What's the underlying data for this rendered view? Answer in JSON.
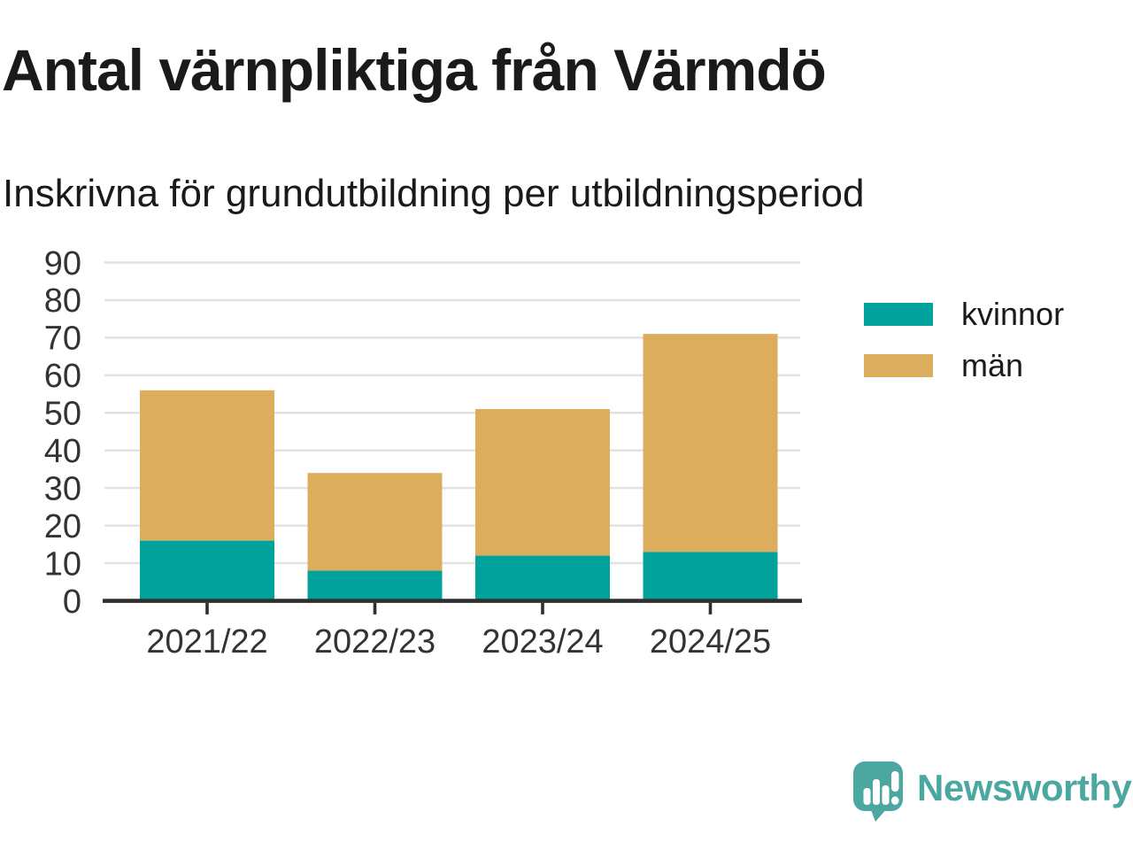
{
  "header": {
    "title": "Antal värnpliktiga från Värmdö",
    "subtitle": "Inskrivna för grundutbildning per utbildningsperiod"
  },
  "chart_data": {
    "type": "bar",
    "stacked": true,
    "title": "Antal värnpliktiga från Värmdö",
    "subtitle": "Inskrivna för grundutbildning per utbildningsperiod",
    "categories": [
      "2021/22",
      "2022/23",
      "2023/24",
      "2024/25"
    ],
    "series": [
      {
        "name": "kvinnor",
        "color": "#00A29B",
        "values": [
          16,
          8,
          12,
          13
        ]
      },
      {
        "name": "män",
        "color": "#DCAD5C",
        "values": [
          40,
          26,
          39,
          58
        ]
      }
    ],
    "xlabel": "",
    "ylabel": "",
    "ylim": [
      0,
      90
    ],
    "ytick_step": 10,
    "yticks": [
      0,
      10,
      20,
      30,
      40,
      50,
      60,
      70,
      80,
      90
    ],
    "grid": true,
    "legend_position": "right"
  },
  "branding": {
    "logo_text": "Newsworthy",
    "logo_color": "#4BA79F"
  },
  "colors": {
    "grid": "#E2E2E2",
    "axis": "#2F2F2F",
    "tick_label": "#333333",
    "text": "#1A1A1A",
    "background": "#FFFFFF"
  }
}
